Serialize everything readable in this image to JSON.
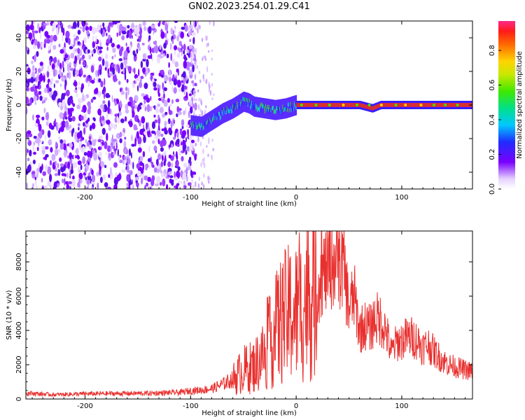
{
  "title": "GN02.2023.254.01.29.C41",
  "chart_data": [
    {
      "type": "heatmap",
      "xlabel": "Height of straight line (km)",
      "ylabel": "Frequency (Hz)",
      "xlim": [
        -256,
        167
      ],
      "ylim": [
        -50,
        50
      ],
      "xticks": [
        -200,
        -100,
        0,
        100
      ],
      "yticks": [
        -40,
        -20,
        0,
        20,
        40
      ],
      "grid": false,
      "ridge": [
        {
          "x": -100,
          "f": -12
        },
        {
          "x": -90,
          "f": -13
        },
        {
          "x": -80,
          "f": -9
        },
        {
          "x": -70,
          "f": -5
        },
        {
          "x": -60,
          "f": -2
        },
        {
          "x": -50,
          "f": 2
        },
        {
          "x": -45,
          "f": 1
        },
        {
          "x": -40,
          "f": -1
        },
        {
          "x": -30,
          "f": -2
        },
        {
          "x": -20,
          "f": -3
        },
        {
          "x": -10,
          "f": -2
        },
        {
          "x": 0,
          "f": 0
        },
        {
          "x": 20,
          "f": 0
        },
        {
          "x": 60,
          "f": 0
        },
        {
          "x": 72,
          "f": -2
        },
        {
          "x": 80,
          "f": 0
        },
        {
          "x": 167,
          "f": 0
        }
      ],
      "colorbar": {
        "label": "Normalized spectral amplitude",
        "ticks": [
          "0.0",
          "0.2",
          "0.4",
          "0.6",
          "0.8"
        ],
        "range": [
          0,
          0.97
        ]
      }
    },
    {
      "type": "line",
      "xlabel": "Height of straight line (km)",
      "ylabel": "SNR (10 * v/v)",
      "xlim": [
        -256,
        167
      ],
      "ylim": [
        0,
        9800
      ],
      "xticks": [
        -200,
        -100,
        0,
        100
      ],
      "yticks": [
        0,
        2000,
        4000,
        6000,
        8000
      ],
      "grid": false,
      "series": [
        {
          "color": "#e8312f",
          "x": [
            -256,
            -230,
            -200,
            -170,
            -140,
            -110,
            -100,
            -90,
            -80,
            -70,
            -60,
            -50,
            -40,
            -35,
            -30,
            -25,
            -20,
            -15,
            -10,
            -5,
            0,
            5,
            10,
            15,
            20,
            25,
            30,
            35,
            40,
            45,
            50,
            55,
            60,
            65,
            70,
            75,
            80,
            85,
            90,
            95,
            100,
            105,
            110,
            115,
            120,
            125,
            130,
            135,
            140,
            145,
            150,
            155,
            160,
            167
          ],
          "y": [
            350,
            250,
            300,
            320,
            330,
            380,
            480,
            520,
            600,
            850,
            1150,
            1700,
            1900,
            2300,
            2700,
            3200,
            3900,
            4500,
            4800,
            5000,
            5000,
            5300,
            5900,
            6000,
            6500,
            7300,
            7600,
            8000,
            8000,
            7700,
            5300,
            6000,
            4000,
            4300,
            4100,
            4700,
            4600,
            4000,
            2700,
            3300,
            3400,
            3600,
            3600,
            3400,
            3000,
            3200,
            2800,
            2500,
            2200,
            2000,
            1900,
            1800,
            1700,
            1600
          ]
        }
      ]
    }
  ]
}
